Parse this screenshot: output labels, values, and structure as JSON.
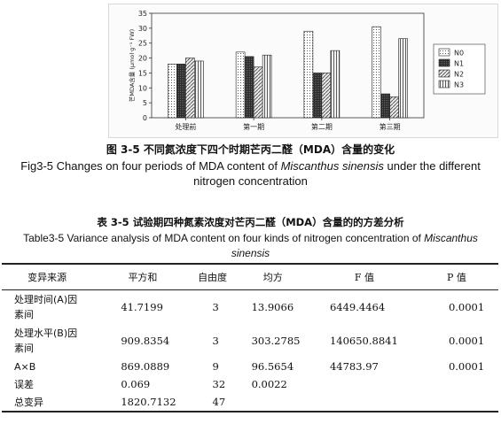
{
  "figure": {
    "caption_cn": "图 3-5 不同氮浓度下四个时期芒丙二醛（MDA）含量的变化",
    "caption_en_pre": "Fig3-5 Changes on four periods of MDA content of ",
    "caption_en_species": "Miscanthus sinensis",
    "caption_en_post": " under the different",
    "caption_en_line2": "nitrogen concentration"
  },
  "chart_data": {
    "type": "bar",
    "ylabel": "芒MDA含量 (μmol·g⁻¹ FW)",
    "ylim": [
      0,
      35
    ],
    "yticks": [
      0,
      5,
      10,
      15,
      20,
      25,
      30,
      35
    ],
    "categories": [
      "处理前",
      "第一期",
      "第二期",
      "第三期"
    ],
    "series": [
      {
        "name": "N0",
        "values": [
          18,
          22,
          29,
          30.5
        ],
        "pattern": "dots"
      },
      {
        "name": "N1",
        "values": [
          18,
          20.5,
          15,
          8
        ],
        "pattern": "dark"
      },
      {
        "name": "N2",
        "values": [
          20,
          17,
          15,
          7
        ],
        "pattern": "hatch"
      },
      {
        "name": "N3",
        "values": [
          19,
          21,
          22.5,
          26.5
        ],
        "pattern": "vlines"
      }
    ],
    "legend_position": "right",
    "grid": false
  },
  "table": {
    "caption_cn": "表 3-5 试验期四种氮素浓度对芒丙二醛（MDA）含量的的方差分析",
    "caption_en_pre": "Table3-5 Variance analysis of MDA content on four kinds of nitrogen concentration of ",
    "caption_en_species1": "Miscanthus",
    "caption_en_species2": "sinensis",
    "headers": [
      "变异来源",
      "平方和",
      "自由度",
      "均方",
      "F 值",
      "P 值"
    ],
    "rows": [
      {
        "source_l1": "处理时间(A)因",
        "source_l2": "素间",
        "ss": "41.7199",
        "df": "3",
        "ms": "13.9066",
        "f": "6449.4464",
        "p": "0.0001"
      },
      {
        "source_l1": "处理水平(B)因",
        "source_l2": "素间",
        "ss": "909.8354",
        "df": "3",
        "ms": "303.2785",
        "f": "140650.8841",
        "p": "0.0001"
      },
      {
        "source_l1": "A×B",
        "source_l2": "",
        "ss": "869.0889",
        "df": "9",
        "ms": "96.5654",
        "f": "44783.97",
        "p": "0.0001"
      },
      {
        "source_l1": "误差",
        "source_l2": "",
        "ss": "0.069",
        "df": "32",
        "ms": "0.0022",
        "f": "",
        "p": ""
      },
      {
        "source_l1": "总变异",
        "source_l2": "",
        "ss": "1820.7132",
        "df": "47",
        "ms": "",
        "f": "",
        "p": ""
      }
    ]
  }
}
